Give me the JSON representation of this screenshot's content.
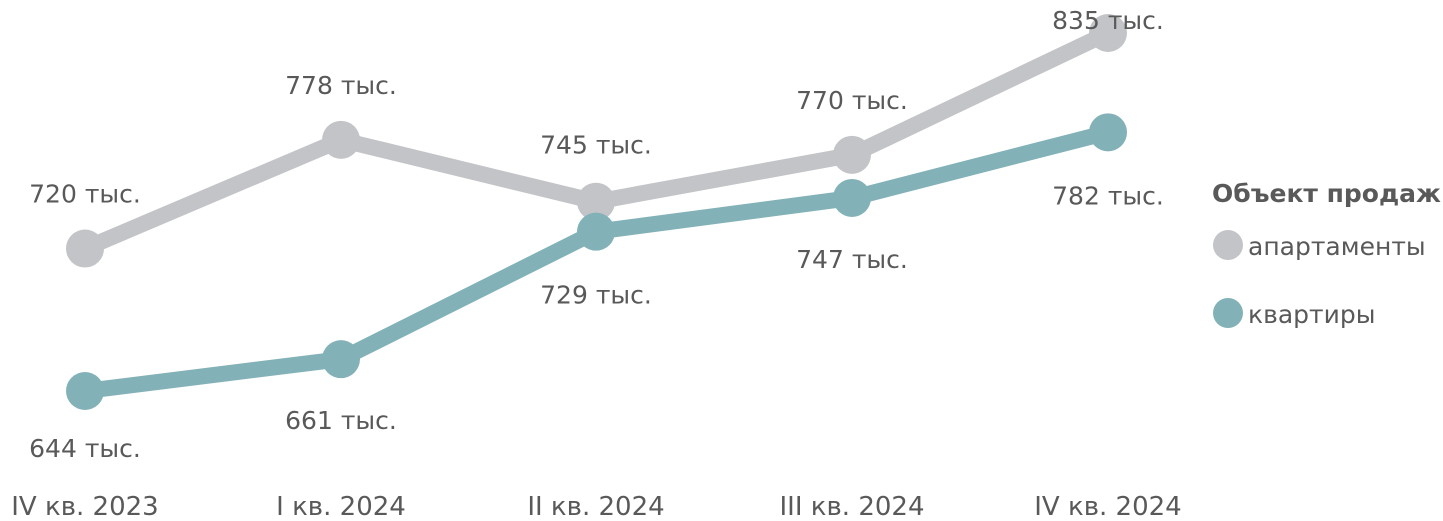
{
  "chart_data": {
    "type": "line",
    "categories": [
      "IV кв. 2023",
      "I кв. 2024",
      "II кв. 2024",
      "III кв. 2024",
      "IV кв. 2024"
    ],
    "series": [
      {
        "name": "апартаменты",
        "values": [
          720,
          778,
          745,
          770,
          835
        ],
        "labels": [
          "720 тыс.",
          "778 тыс.",
          "745 тыс.",
          "770 тыс.",
          "835 тыс."
        ],
        "color": "#C2C4C7"
      },
      {
        "name": "квартиры",
        "values": [
          644,
          661,
          729,
          747,
          782
        ],
        "labels": [
          "644 тыс.",
          "661 тыс.",
          "729 тыс.",
          "747 тыс.",
          "782 тыс."
        ],
        "color": "#82B2B8"
      }
    ],
    "legend": {
      "title": "Объект продаж",
      "position": "right"
    },
    "grid": false
  }
}
